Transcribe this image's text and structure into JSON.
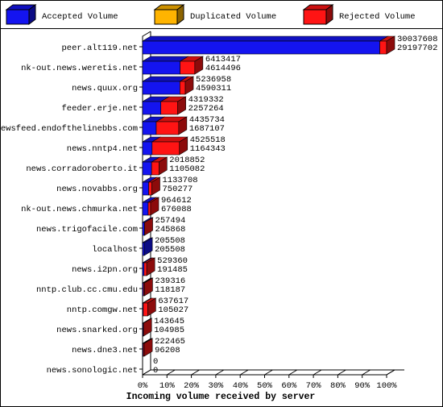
{
  "chart_data": {
    "type": "bar3d_stacked_horizontal",
    "x_label": "Incoming volume received by server",
    "categories": [
      "peer.alt119.net",
      "nk-out.news.weretis.net",
      "news.quux.org",
      "feeder.erje.net",
      "newsfeed.endofthelinebbs.com",
      "news.nntp4.net",
      "news.corradoroberto.it",
      "news.novabbs.org",
      "nk-out.news.chmurka.net",
      "news.trigofacile.com",
      "localhost",
      "news.i2pn.org",
      "nntp.club.cc.cmu.edu",
      "nntp.comgw.net",
      "news.snarked.org",
      "news.dne3.net",
      "news.sonologic.net"
    ],
    "series": [
      {
        "name": "Accepted Volume",
        "color": "#1414f0",
        "values": [
          97.2,
          15.4,
          15.3,
          7.5,
          5.6,
          3.9,
          3.7,
          2.5,
          2.3,
          0.8,
          0.7,
          0.6,
          0.4,
          0.3,
          0.3,
          0.3,
          0
        ]
      },
      {
        "name": "Duplicated Volume",
        "color": "#ffb400",
        "values": [
          0,
          0,
          0,
          0,
          0,
          0,
          0,
          0,
          0,
          0,
          0,
          0,
          0,
          0,
          0,
          0,
          0
        ]
      },
      {
        "name": "Rejected Volume",
        "color": "#ff1414",
        "values": [
          2.8,
          6.0,
          2.2,
          6.9,
          9.2,
          11.2,
          3.0,
          1.3,
          1.0,
          0.04,
          0,
          1.1,
          0.4,
          1.8,
          0.1,
          0.4,
          0
        ]
      }
    ],
    "row_labels": [
      [
        30037608,
        29197702
      ],
      [
        6413417,
        4614496
      ],
      [
        5236958,
        4590311
      ],
      [
        4319332,
        2257264
      ],
      [
        4435734,
        1687107
      ],
      [
        4525518,
        1164343
      ],
      [
        2018852,
        1105082
      ],
      [
        1133708,
        750277
      ],
      [
        964612,
        676088
      ],
      [
        257494,
        245868
      ],
      [
        205508,
        205508
      ],
      [
        529360,
        191485
      ],
      [
        239316,
        118187
      ],
      [
        637617,
        105027
      ],
      [
        143645,
        104985
      ],
      [
        222465,
        96208
      ],
      [
        0,
        0
      ]
    ],
    "xlim": [
      0,
      100
    ],
    "xticks": [
      {
        "value": 0,
        "label": "0%"
      },
      {
        "value": 10,
        "label": "10%"
      },
      {
        "value": 20,
        "label": "20%"
      },
      {
        "value": 30,
        "label": "30%"
      },
      {
        "value": 40,
        "label": "40%"
      },
      {
        "value": 50,
        "label": "50%"
      },
      {
        "value": 60,
        "label": "60%"
      },
      {
        "value": 70,
        "label": "70%"
      },
      {
        "value": 80,
        "label": "80%"
      },
      {
        "value": 90,
        "label": "90%"
      },
      {
        "value": 100,
        "label": "100%"
      }
    ]
  }
}
